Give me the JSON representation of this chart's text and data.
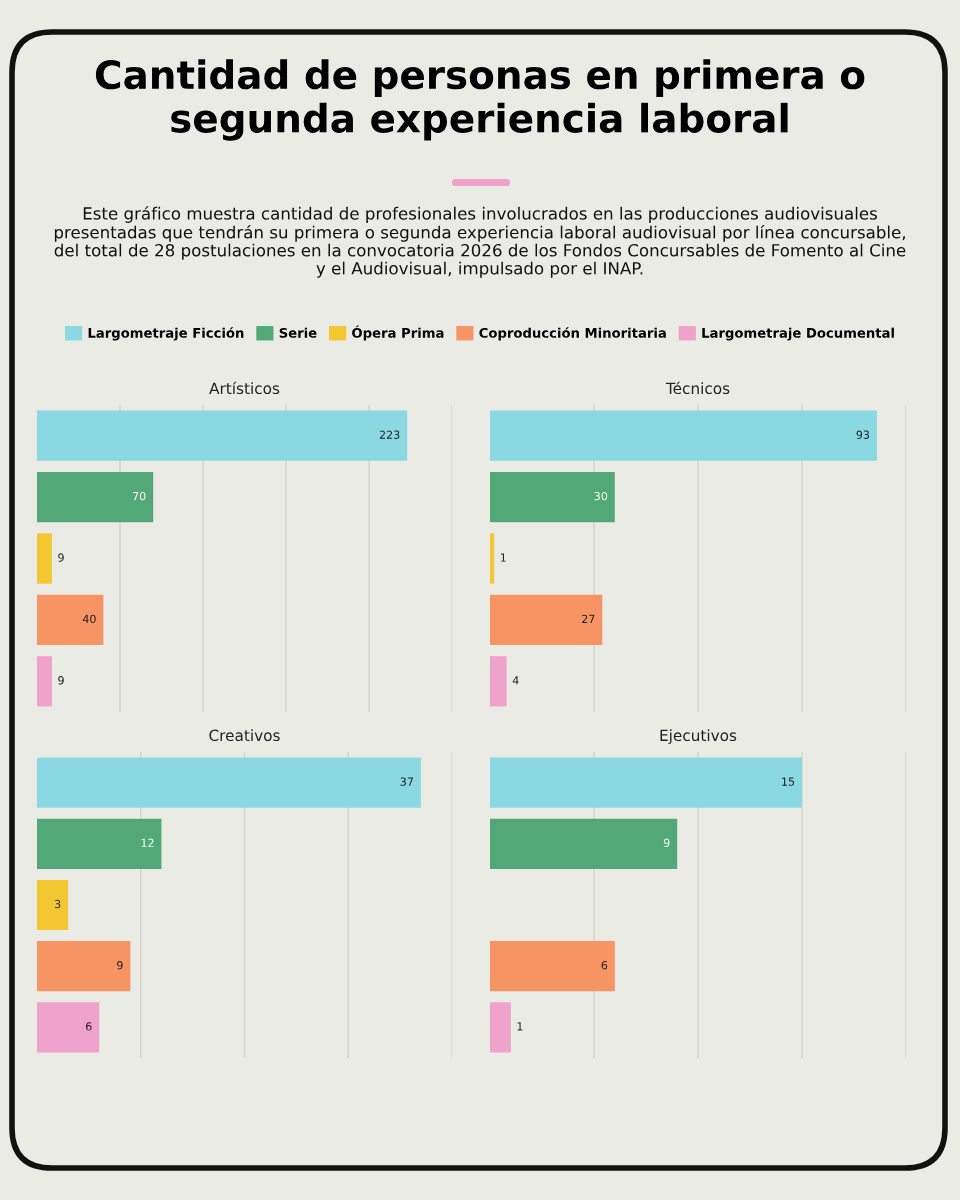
{
  "chart_data": [
    {
      "type": "bar",
      "orientation": "horizontal",
      "title": "Artísticos",
      "annotations": [
        "Cantidad de personas en primera o segunda experiencia laboral",
        "Este gráfico muestra cantidad de profesionales involucrados en las producciones audiovisuales presentadas que tendrán su primera o segunda experiencia laboral audiovisual por línea concursable, del total de 28 postulaciones en la convocatoria 2026 de los Fondos Concursables de Fomento al Cine y el Audiovisual, impulsado por el INAP."
      ],
      "categories": [
        null
      ],
      "series": [
        {
          "name": "Largometraje Ficción",
          "color": "#8ad8e1",
          "values": [
            223
          ]
        },
        {
          "name": "Serie",
          "color": "#52a977",
          "values": [
            70
          ]
        },
        {
          "name": "Ópera Prima",
          "color": "#f2c731",
          "values": [
            9
          ]
        },
        {
          "name": "Coproducción Minoritaria",
          "color": "#f79464",
          "values": [
            40
          ]
        },
        {
          "name": "Largometraje Documental",
          "color": "#efa3cb",
          "values": [
            9
          ]
        }
      ],
      "xlim": [
        0,
        250
      ],
      "xticks": [
        {
          "value": 50,
          "label": null
        },
        {
          "value": 100,
          "label": null
        },
        {
          "value": 150,
          "label": null
        },
        {
          "value": 200,
          "label": null
        },
        {
          "value": 250,
          "label": null
        }
      ],
      "grid": "x",
      "data_labels": true,
      "legend": "top"
    },
    {
      "type": "bar",
      "orientation": "horizontal",
      "title": "Técnicos",
      "categories": [
        null
      ],
      "series": [
        {
          "color": "#8ad8e1",
          "values": [
            93
          ]
        },
        {
          "color": "#52a977",
          "values": [
            30
          ]
        },
        {
          "color": "#f2c731",
          "values": [
            1
          ]
        },
        {
          "color": "#f79464",
          "values": [
            27
          ]
        },
        {
          "color": "#efa3cb",
          "values": [
            4
          ]
        }
      ],
      "xlim": [
        0,
        100
      ],
      "xticks": [
        {
          "value": 25,
          "label": null
        },
        {
          "value": 50,
          "label": null
        },
        {
          "value": 75,
          "label": null
        },
        {
          "value": 100,
          "label": null
        }
      ],
      "grid": "x",
      "data_labels": true
    },
    {
      "type": "bar",
      "orientation": "horizontal",
      "title": "Creativos",
      "categories": [
        null
      ],
      "series": [
        {
          "color": "#8ad8e1",
          "values": [
            37
          ]
        },
        {
          "color": "#52a977",
          "values": [
            12
          ]
        },
        {
          "color": "#f2c731",
          "values": [
            3
          ]
        },
        {
          "color": "#f79464",
          "values": [
            9
          ]
        },
        {
          "color": "#efa3cb",
          "values": [
            6
          ]
        }
      ],
      "xlim": [
        0,
        40
      ],
      "xticks": [
        {
          "value": 10,
          "label": null
        },
        {
          "value": 20,
          "label": null
        },
        {
          "value": 30,
          "label": null
        },
        {
          "value": 40,
          "label": null
        }
      ],
      "grid": "x",
      "data_labels": true
    },
    {
      "type": "bar",
      "orientation": "horizontal",
      "title": "Ejecutivos",
      "categories": [
        null
      ],
      "series": [
        {
          "color": "#8ad8e1",
          "values": [
            15
          ]
        },
        {
          "color": "#52a977",
          "values": [
            9
          ]
        },
        {
          "values": [
            null
          ]
        },
        {
          "color": "#f79464",
          "values": [
            6
          ]
        },
        {
          "color": "#efa3cb",
          "values": [
            1
          ]
        }
      ],
      "xlim": [
        0,
        20
      ],
      "xticks": [
        {
          "value": 5,
          "label": null
        },
        {
          "value": 10,
          "label": null
        },
        {
          "value": 15,
          "label": null
        },
        {
          "value": 20,
          "label": null
        }
      ],
      "grid": "x",
      "data_labels": true
    }
  ]
}
